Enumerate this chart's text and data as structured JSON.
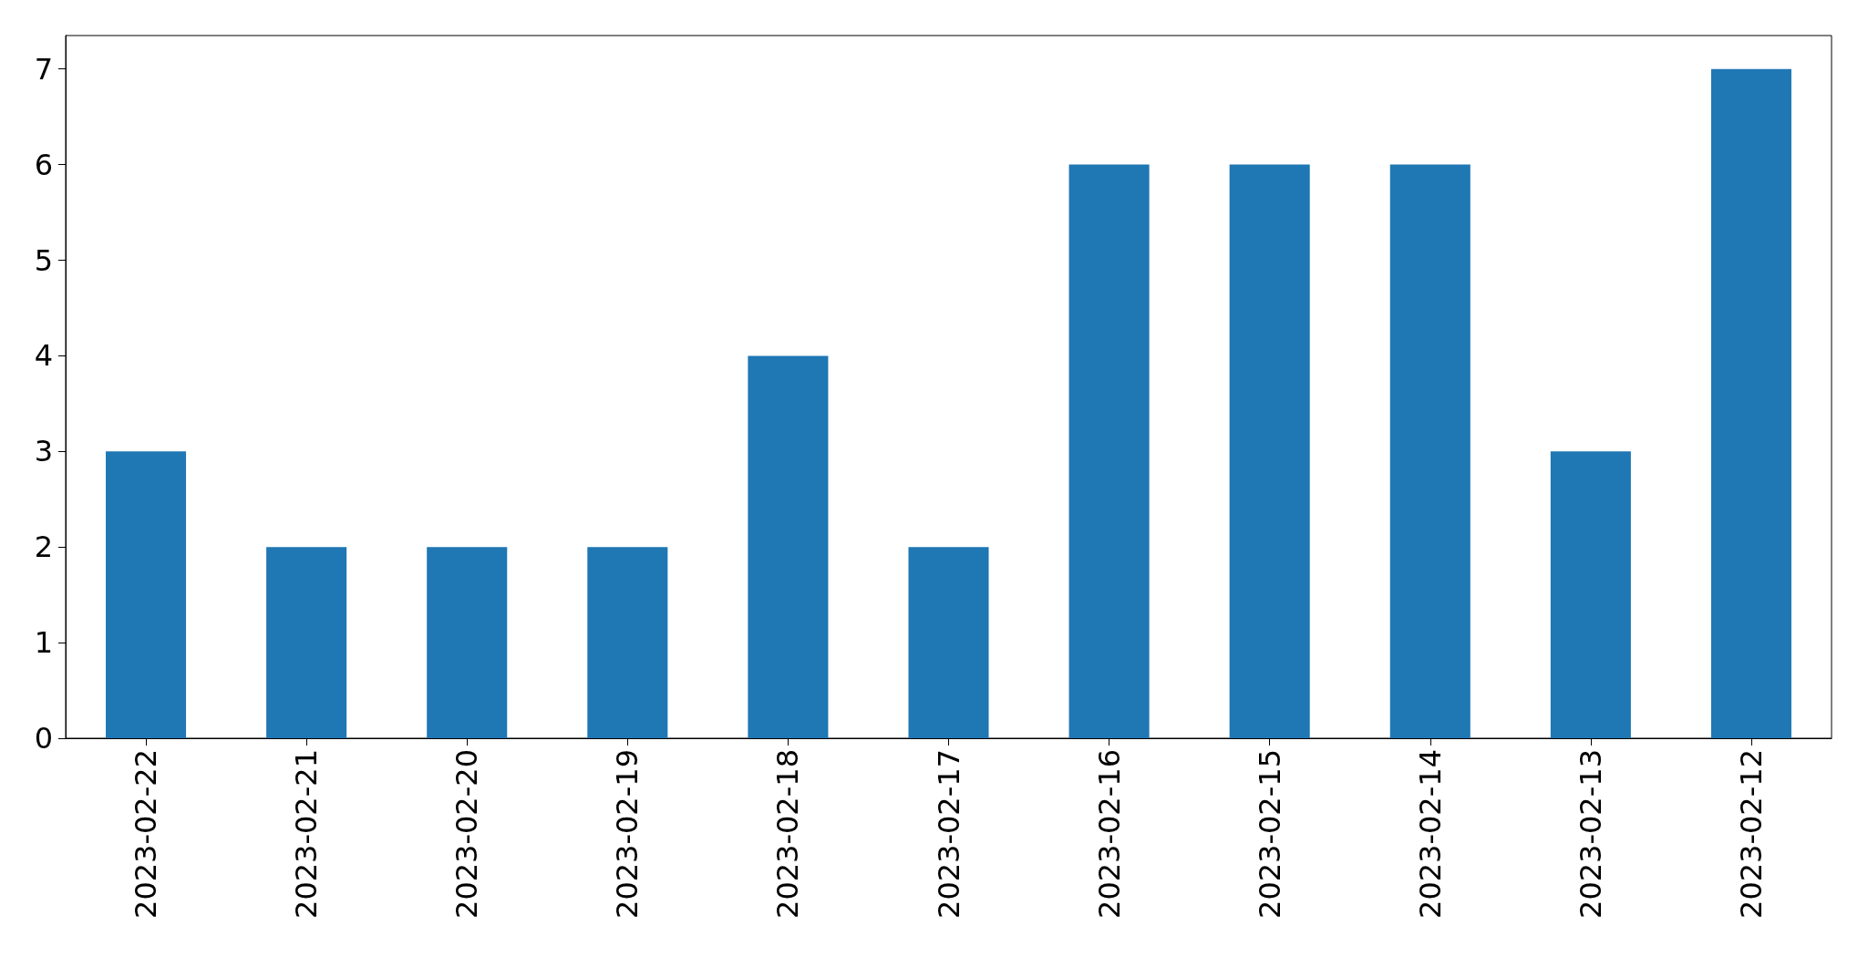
{
  "chart_data": {
    "type": "bar",
    "categories": [
      "2023-02-22",
      "2023-02-21",
      "2023-02-20",
      "2023-02-19",
      "2023-02-18",
      "2023-02-17",
      "2023-02-16",
      "2023-02-15",
      "2023-02-14",
      "2023-02-13",
      "2023-02-12"
    ],
    "values": [
      3,
      2,
      2,
      2,
      4,
      2,
      6,
      6,
      6,
      3,
      7
    ],
    "color": "#1f77b4",
    "ylim": [
      0,
      7.35
    ],
    "yticks": [
      0,
      1,
      2,
      3,
      4,
      5,
      6,
      7
    ]
  }
}
